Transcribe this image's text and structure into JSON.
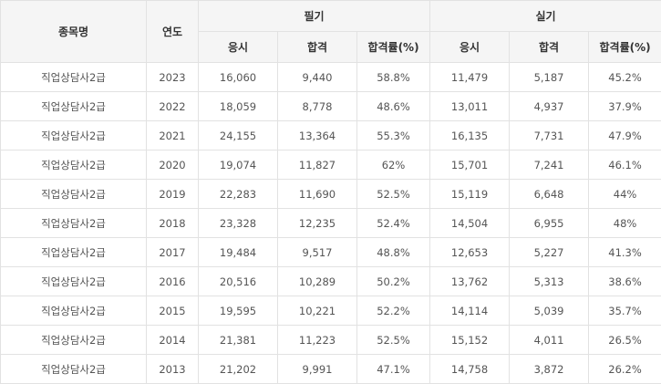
{
  "headers": {
    "item": "종목명",
    "year": "연도",
    "written": "필기",
    "practical": "실기",
    "applicants": "응시",
    "passed": "합격",
    "pass_rate": "합격률(%)"
  },
  "rows": [
    {
      "item": "직업상담사2급",
      "year": "2023",
      "w_app": "16,060",
      "w_pass": "9,440",
      "w_rate": "58.8%",
      "p_app": "11,479",
      "p_pass": "5,187",
      "p_rate": "45.2%"
    },
    {
      "item": "직업상담사2급",
      "year": "2022",
      "w_app": "18,059",
      "w_pass": "8,778",
      "w_rate": "48.6%",
      "p_app": "13,011",
      "p_pass": "4,937",
      "p_rate": "37.9%"
    },
    {
      "item": "직업상담사2급",
      "year": "2021",
      "w_app": "24,155",
      "w_pass": "13,364",
      "w_rate": "55.3%",
      "p_app": "16,135",
      "p_pass": "7,731",
      "p_rate": "47.9%"
    },
    {
      "item": "직업상담사2급",
      "year": "2020",
      "w_app": "19,074",
      "w_pass": "11,827",
      "w_rate": "62%",
      "p_app": "15,701",
      "p_pass": "7,241",
      "p_rate": "46.1%"
    },
    {
      "item": "직업상담사2급",
      "year": "2019",
      "w_app": "22,283",
      "w_pass": "11,690",
      "w_rate": "52.5%",
      "p_app": "15,119",
      "p_pass": "6,648",
      "p_rate": "44%"
    },
    {
      "item": "직업상담사2급",
      "year": "2018",
      "w_app": "23,328",
      "w_pass": "12,235",
      "w_rate": "52.4%",
      "p_app": "14,504",
      "p_pass": "6,955",
      "p_rate": "48%"
    },
    {
      "item": "직업상담사2급",
      "year": "2017",
      "w_app": "19,484",
      "w_pass": "9,517",
      "w_rate": "48.8%",
      "p_app": "12,653",
      "p_pass": "5,227",
      "p_rate": "41.3%"
    },
    {
      "item": "직업상담사2급",
      "year": "2016",
      "w_app": "20,516",
      "w_pass": "10,289",
      "w_rate": "50.2%",
      "p_app": "13,762",
      "p_pass": "5,313",
      "p_rate": "38.6%"
    },
    {
      "item": "직업상담사2급",
      "year": "2015",
      "w_app": "19,595",
      "w_pass": "10,221",
      "w_rate": "52.2%",
      "p_app": "14,114",
      "p_pass": "5,039",
      "p_rate": "35.7%"
    },
    {
      "item": "직업상담사2급",
      "year": "2014",
      "w_app": "21,381",
      "w_pass": "11,223",
      "w_rate": "52.5%",
      "p_app": "15,152",
      "p_pass": "4,011",
      "p_rate": "26.5%"
    },
    {
      "item": "직업상담사2급",
      "year": "2013",
      "w_app": "21,202",
      "w_pass": "9,991",
      "w_rate": "47.1%",
      "p_app": "14,758",
      "p_pass": "3,872",
      "p_rate": "26.2%"
    }
  ]
}
